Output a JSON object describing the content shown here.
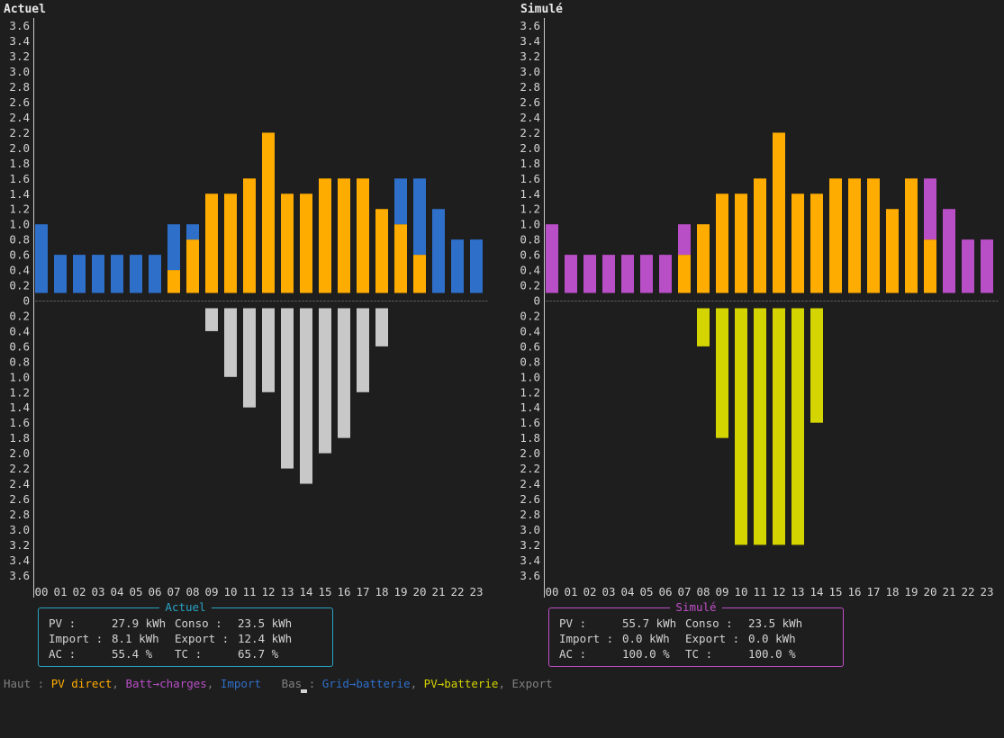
{
  "chart_data": [
    {
      "type": "bar",
      "title": "Actuel",
      "stacked": true,
      "hours": [
        "00",
        "01",
        "02",
        "03",
        "04",
        "05",
        "06",
        "07",
        "08",
        "09",
        "10",
        "11",
        "12",
        "13",
        "14",
        "15",
        "16",
        "17",
        "18",
        "19",
        "20",
        "21",
        "22",
        "23"
      ],
      "y_ticks_top": [
        "3.6",
        "3.4",
        "3.2",
        "3.0",
        "2.8",
        "2.6",
        "2.4",
        "2.2",
        "2.0",
        "1.8",
        "1.6",
        "1.4",
        "1.2",
        "1.0",
        "0.8",
        "0.6",
        "0.4",
        "0.2"
      ],
      "zero_label": "0",
      "y_ticks_bottom": [
        "0.2",
        "0.4",
        "0.6",
        "0.8",
        "1.0",
        "1.2",
        "1.4",
        "1.6",
        "1.8",
        "2.0",
        "2.2",
        "2.4",
        "2.6",
        "2.8",
        "3.0",
        "3.2",
        "3.4",
        "3.6"
      ],
      "ylim": [
        -3.6,
        3.6
      ],
      "series_top": [
        {
          "name": "PV direct",
          "color": "#ffac00",
          "values": [
            0,
            0,
            0,
            0,
            0,
            0,
            0,
            0.3,
            0.7,
            1.3,
            1.3,
            1.5,
            2.1,
            1.3,
            1.3,
            1.5,
            1.5,
            1.5,
            1.1,
            0.9,
            0.5,
            0,
            0,
            0
          ]
        },
        {
          "name": "Batt→charges",
          "color": "#b84fc6",
          "values": [
            0,
            0,
            0,
            0,
            0,
            0,
            0,
            0,
            0,
            0,
            0,
            0,
            0,
            0,
            0,
            0,
            0,
            0,
            0,
            0,
            0,
            0,
            0,
            0
          ]
        },
        {
          "name": "Import",
          "color": "#2e6fc9",
          "values": [
            0.9,
            0.5,
            0.5,
            0.5,
            0.5,
            0.5,
            0.5,
            0.6,
            0.2,
            0,
            0,
            0,
            0,
            0,
            0,
            0,
            0,
            0,
            0,
            0.6,
            1.0,
            1.1,
            0.7,
            0.7
          ]
        }
      ],
      "series_bottom": [
        {
          "name": "Grid→batterie",
          "color": "#2e6fc9",
          "values": [
            0,
            0,
            0,
            0,
            0,
            0,
            0,
            0,
            0,
            0,
            0,
            0,
            0,
            0,
            0,
            0,
            0,
            0,
            0,
            0,
            0,
            0,
            0,
            0
          ]
        },
        {
          "name": "PV→batterie",
          "color": "#d4d400",
          "values": [
            0,
            0,
            0,
            0,
            0,
            0,
            0,
            0,
            0,
            0,
            0,
            0,
            0,
            0,
            0,
            0,
            0,
            0,
            0,
            0,
            0,
            0,
            0,
            0
          ]
        },
        {
          "name": "Export",
          "color": "#c8c8c8",
          "values": [
            0,
            0,
            0,
            0,
            0,
            0,
            0,
            0,
            0,
            0.3,
            0.9,
            1.3,
            1.1,
            2.1,
            2.3,
            1.9,
            1.7,
            1.1,
            0.5,
            0,
            0,
            0,
            0,
            0
          ]
        }
      ]
    },
    {
      "type": "bar",
      "title": "Simulé",
      "stacked": true,
      "hours": [
        "00",
        "01",
        "02",
        "03",
        "04",
        "05",
        "06",
        "07",
        "08",
        "09",
        "10",
        "11",
        "12",
        "13",
        "14",
        "15",
        "16",
        "17",
        "18",
        "19",
        "20",
        "21",
        "22",
        "23"
      ],
      "y_ticks_top": [
        "3.6",
        "3.4",
        "3.2",
        "3.0",
        "2.8",
        "2.6",
        "2.4",
        "2.2",
        "2.0",
        "1.8",
        "1.6",
        "1.4",
        "1.2",
        "1.0",
        "0.8",
        "0.6",
        "0.4",
        "0.2"
      ],
      "zero_label": "0",
      "y_ticks_bottom": [
        "0.2",
        "0.4",
        "0.6",
        "0.8",
        "1.0",
        "1.2",
        "1.4",
        "1.6",
        "1.8",
        "2.0",
        "2.2",
        "2.4",
        "2.6",
        "2.8",
        "3.0",
        "3.2",
        "3.4",
        "3.6"
      ],
      "ylim": [
        -3.6,
        3.6
      ],
      "series_top": [
        {
          "name": "PV direct",
          "color": "#ffac00",
          "values": [
            0,
            0,
            0,
            0,
            0,
            0,
            0,
            0.5,
            0.9,
            1.3,
            1.3,
            1.5,
            2.1,
            1.3,
            1.3,
            1.5,
            1.5,
            1.5,
            1.1,
            1.5,
            0.7,
            0,
            0,
            0
          ]
        },
        {
          "name": "Batt→charges",
          "color": "#b84fc6",
          "values": [
            0.9,
            0.5,
            0.5,
            0.5,
            0.5,
            0.5,
            0.5,
            0.4,
            0,
            0,
            0,
            0,
            0,
            0,
            0,
            0,
            0,
            0,
            0,
            0,
            0.8,
            1.1,
            0.7,
            0.7
          ]
        },
        {
          "name": "Import",
          "color": "#2e6fc9",
          "values": [
            0,
            0,
            0,
            0,
            0,
            0,
            0,
            0,
            0,
            0,
            0,
            0,
            0,
            0,
            0,
            0,
            0,
            0,
            0,
            0,
            0,
            0,
            0,
            0
          ]
        }
      ],
      "series_bottom": [
        {
          "name": "Grid→batterie",
          "color": "#2e6fc9",
          "values": [
            0,
            0,
            0,
            0,
            0,
            0,
            0,
            0,
            0,
            0,
            0,
            0,
            0,
            0,
            0,
            0,
            0,
            0,
            0,
            0,
            0,
            0,
            0,
            0
          ]
        },
        {
          "name": "PV→batterie",
          "color": "#d4d400",
          "values": [
            0,
            0,
            0,
            0,
            0,
            0,
            0,
            0,
            0.5,
            1.7,
            3.1,
            3.1,
            3.1,
            3.1,
            1.5,
            0,
            0,
            0,
            0,
            0,
            0,
            0,
            0,
            0
          ]
        },
        {
          "name": "Export",
          "color": "#c8c8c8",
          "values": [
            0,
            0,
            0,
            0,
            0,
            0,
            0,
            0,
            0,
            0,
            0,
            0,
            0,
            0,
            0,
            0,
            0,
            0,
            0,
            0,
            0,
            0,
            0,
            0
          ]
        }
      ]
    }
  ],
  "summaries": [
    {
      "caption": "Actuel",
      "border_color": "#29a3c4",
      "pv_label": "PV :",
      "pv_value": "27.9 kWh",
      "conso_label": "Conso :",
      "conso_value": "23.5 kWh",
      "import_label": "Import :",
      "import_value": "8.1 kWh",
      "export_label": "Export :",
      "export_value": "12.4 kWh",
      "ac_label": "AC :",
      "ac_value": "55.4 %",
      "tc_label": "TC :",
      "tc_value": "65.7 %"
    },
    {
      "caption": "Simulé",
      "border_color": "#c04fc8",
      "pv_label": "PV :",
      "pv_value": "55.7 kWh",
      "conso_label": "Conso :",
      "conso_value": "23.5 kWh",
      "import_label": "Import :",
      "import_value": "0.0 kWh",
      "export_label": "Export :",
      "export_value": "0.0 kWh",
      "ac_label": "AC :",
      "ac_value": "100.0 %",
      "tc_label": "TC :",
      "tc_value": "100.0 %"
    }
  ],
  "legend": {
    "top_label": "Haut :",
    "pv_direct": "PV direct",
    "batt_charges": "Batt→charges",
    "import": "Import",
    "bottom_label": "Bas :",
    "grid_batterie": "Grid→batterie",
    "pv_batterie": "PV→batterie",
    "export": "Export",
    "sep": ","
  },
  "colors": {
    "background": "#1e1e1e",
    "text": "#d4d4d4",
    "axis": "#c8c8c8",
    "baseline": "#5a5a5a",
    "pv_direct": "#ffac00",
    "batt_charges": "#b84fc6",
    "import": "#2e6fc9",
    "pv_batterie": "#d4d400",
    "export": "#c8c8c8",
    "legend_muted": "#808080"
  }
}
